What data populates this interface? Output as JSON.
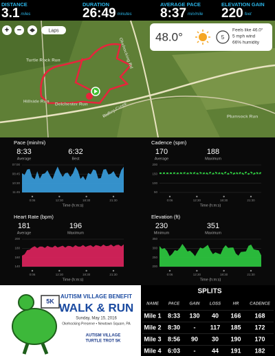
{
  "stats": [
    {
      "label": "DISTANCE",
      "value": "3.1",
      "unit": "miles"
    },
    {
      "label": "DURATION",
      "value": "26:49",
      "unit": "minutes"
    },
    {
      "label": "AVERAGE PACE",
      "value": "8:37",
      "unit": "min/mile"
    },
    {
      "label": "ELEVATION GAIN",
      "value": "220",
      "unit": "feet"
    }
  ],
  "map": {
    "laps_button": "Laps",
    "places": [
      "Turtle Rock Run",
      "Hillside Run",
      "Delchester Run",
      "Ridley Creek",
      "Plumsock Run",
      "Okehocking Rd"
    ]
  },
  "weather": {
    "temperature": "48.0°",
    "wind_badge": "5",
    "feels_like": "Feels like 46.0°",
    "wind": "5 mph wind",
    "humidity": "66% humidity"
  },
  "panels": [
    {
      "title": "Pace (min/mi)",
      "stats": [
        {
          "value": "8:33",
          "label": "Average"
        },
        {
          "value": "6:32",
          "label": "Best"
        }
      ],
      "yticks": [
        "07:00",
        "08:45",
        "10:30",
        "11:45"
      ],
      "xticks": [
        "0:06",
        "12:30",
        "18:30",
        "21:30"
      ],
      "xlabel": "Time (h:m:s)"
    },
    {
      "title": "Cadence (spm)",
      "stats": [
        {
          "value": "170",
          "label": "Average"
        },
        {
          "value": "188",
          "label": "Maximum"
        }
      ],
      "yticks": [
        "200",
        "150",
        "100",
        "50"
      ],
      "xticks": [
        "0:06",
        "12:30",
        "18:30",
        "21:30"
      ],
      "xlabel": "Time (h:m:s)"
    },
    {
      "title": "Heart Rate (bpm)",
      "stats": [
        {
          "value": "181",
          "label": "Average"
        },
        {
          "value": "196",
          "label": "Maximum"
        }
      ],
      "yticks": [
        "200",
        "180",
        "160",
        "140"
      ],
      "xticks": [
        "0:06",
        "12:30",
        "18:30",
        "21:30"
      ],
      "xlabel": "Time (h:m:s)"
    },
    {
      "title": "Elevation (ft)",
      "stats": [
        {
          "value": "230",
          "label": "Minimum"
        },
        {
          "value": "351",
          "label": "Maximum"
        }
      ],
      "yticks": [
        "350",
        "300",
        "250",
        "200"
      ],
      "xticks": [
        "0:06",
        "12:30",
        "18:30",
        "21:30"
      ],
      "xlabel": "Time (h:m:s)"
    }
  ],
  "flyer": {
    "badge": "5K",
    "heading": "AUTISM VILLAGE BENEFIT",
    "title": "WALK & RUN",
    "date": "Sunday, May 15, 2016",
    "place": "Okehocking Preserve • Newtown Square, PA",
    "logo_line1": "AUTISM VILLAGE",
    "logo_line2": "TURTLE TROT 5K"
  },
  "splits": {
    "title": "SPLITS",
    "columns": [
      "NAME",
      "PACE",
      "GAIN",
      "LOSS",
      "HR",
      "CADENCE"
    ],
    "rows": [
      [
        "Mile 1",
        "8:33",
        130,
        40,
        166,
        168
      ],
      [
        "Mile 2",
        "8:30",
        "-",
        117,
        185,
        172
      ],
      [
        "Mile 3",
        "8:56",
        90,
        30,
        190,
        170
      ],
      [
        "Mile 4",
        "6:03",
        "-",
        44,
        191,
        182
      ]
    ]
  }
}
